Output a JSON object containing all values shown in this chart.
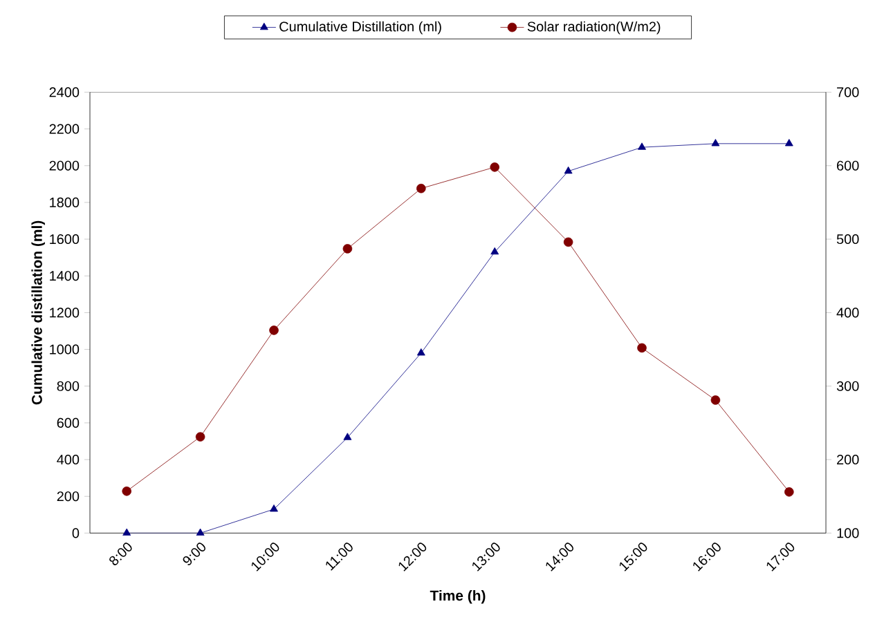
{
  "chart_data": {
    "type": "line",
    "xlabel": "Time  (h)",
    "ylabel": "Cumulative distillation (ml)",
    "categories": [
      "8:00",
      "9:00",
      "10:00",
      "11:00",
      "12:00",
      "13:00",
      "14:00",
      "15:00",
      "16:00",
      "17:00"
    ],
    "series": [
      {
        "name": "Cumulative Distillation (ml)",
        "color": "#000080",
        "marker": "triangle",
        "values": [
          0,
          0,
          130,
          520,
          980,
          1530,
          1970,
          2100,
          2120,
          2120
        ]
      },
      {
        "name": "Solar radiation(W/m2)",
        "color": "#800000",
        "marker": "circle",
        "axis": "y2",
        "values": [
          157,
          231,
          376,
          487,
          569,
          598,
          496,
          352,
          281,
          156
        ]
      }
    ],
    "ylim": [
      0,
      2400
    ],
    "yticks": [
      0,
      200,
      400,
      600,
      800,
      1000,
      1200,
      1400,
      1600,
      1800,
      2000,
      2200,
      2400
    ],
    "y2lim": [
      100,
      700
    ],
    "y2ticks": [
      100,
      200,
      300,
      400,
      500,
      600,
      700
    ],
    "grid": false,
    "legend": "top"
  }
}
